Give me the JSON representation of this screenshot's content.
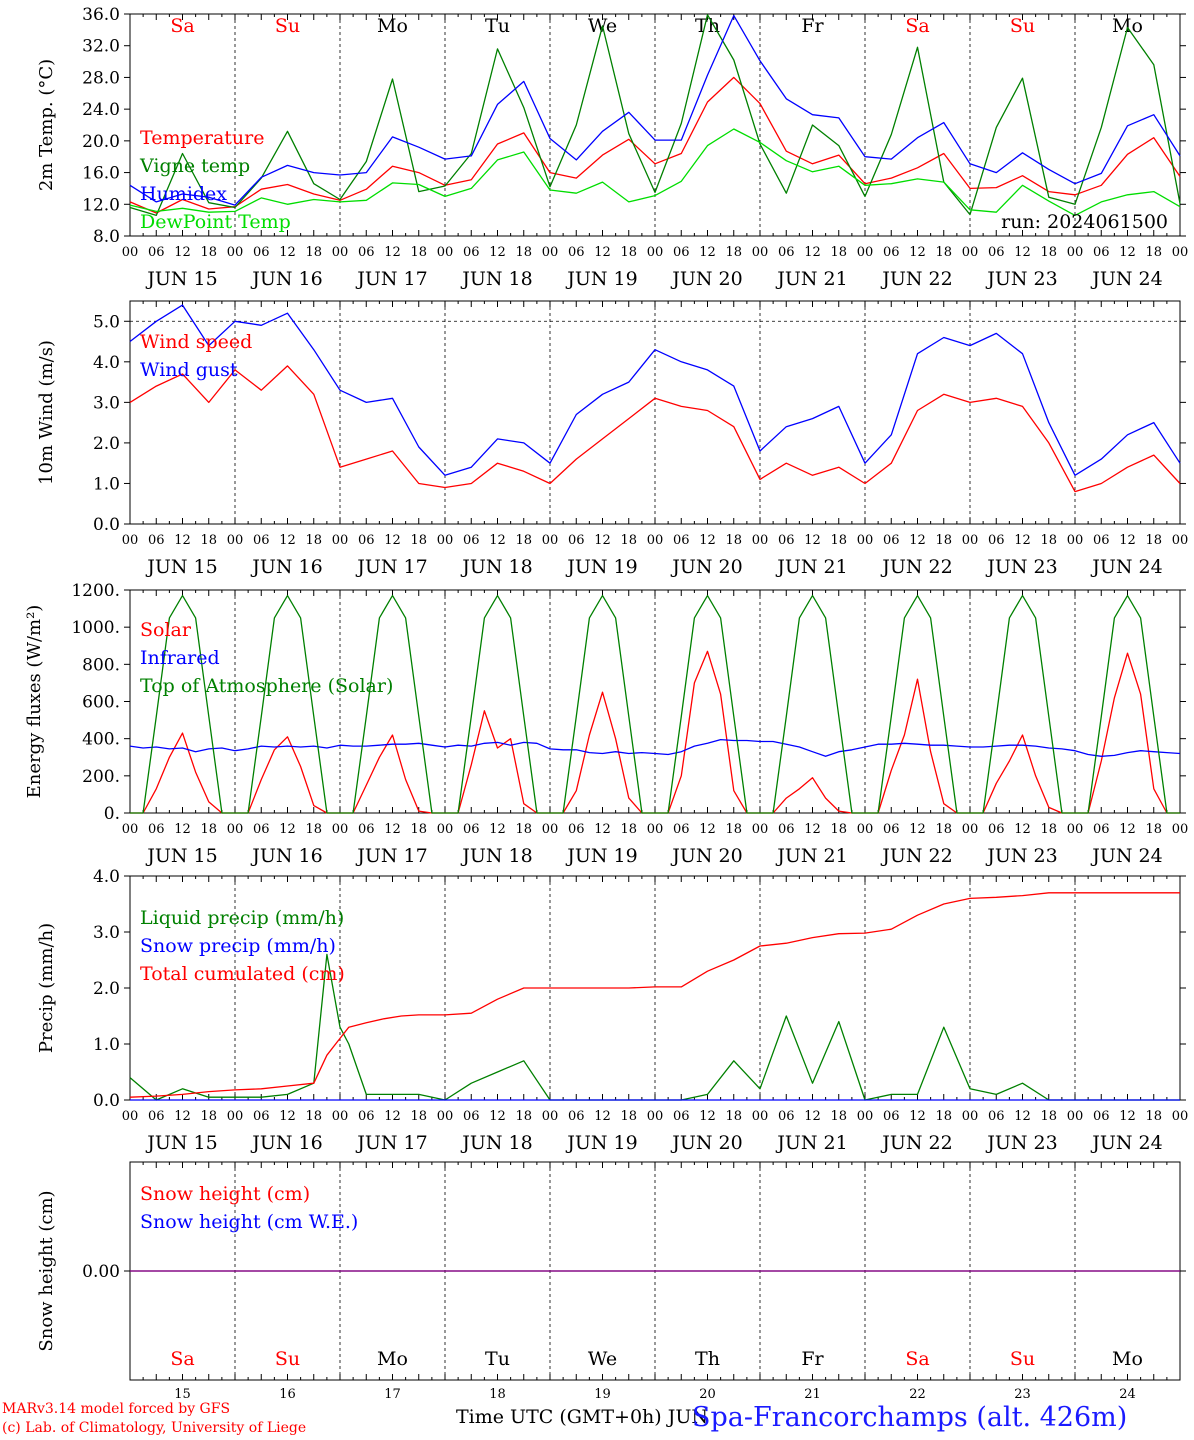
{
  "footer": {
    "credit_line1": "MARv3.14 model forced by GFS",
    "credit_line2": "(c) Lab. of Climatology, University of Liege",
    "xlabel": "Time UTC (GMT+0h) JUN",
    "station": "Spa-Francorchamps (alt. 426m)"
  },
  "day_names": [
    "Sa",
    "Su",
    "Mo",
    "Tu",
    "We",
    "Th",
    "Fr",
    "Sa",
    "Su",
    "Mo"
  ],
  "weekend": [
    true,
    true,
    false,
    false,
    false,
    false,
    false,
    true,
    true,
    false
  ],
  "date_labels": [
    "JUN 15",
    "JUN 16",
    "JUN 17",
    "JUN 18",
    "JUN 19",
    "JUN 20",
    "JUN 21",
    "JUN 22",
    "JUN 23",
    "JUN 24"
  ],
  "day_numbers": [
    "15",
    "16",
    "17",
    "18",
    "19",
    "20",
    "21",
    "22",
    "23",
    "24"
  ],
  "hour_ticks": [
    "00",
    "06",
    "12",
    "18"
  ],
  "last_tick": "00",
  "colors": {
    "red": "#ff0000",
    "green": "#008000",
    "blue": "#0000ff",
    "lightgreen": "#00dd00",
    "purple": "#800080"
  },
  "chart_data": [
    {
      "type": "line",
      "ylabel": "2m Temp. (°C)",
      "ylim": [
        8,
        36
      ],
      "yticks": [
        "8.0",
        "12.0",
        "16.0",
        "20.0",
        "24.0",
        "28.0",
        "32.0",
        "36.0"
      ],
      "annotation": "run: 2024061500",
      "x_hours": [
        0,
        6,
        12,
        18,
        24,
        30,
        36,
        42,
        48,
        54,
        60,
        66,
        72,
        78,
        84,
        90,
        96,
        102,
        108,
        114,
        120,
        126,
        132,
        138,
        144,
        150,
        156,
        162,
        168,
        174,
        180,
        186,
        192,
        198,
        204,
        210,
        216,
        222,
        228,
        234,
        240
      ],
      "series": [
        {
          "name": "Temperature",
          "color": "red",
          "values": [
            12.3,
            10.9,
            12.6,
            11.4,
            11.7,
            13.9,
            14.5,
            13.3,
            12.5,
            13.9,
            16.8,
            16.0,
            14.4,
            15.1,
            19.6,
            21.0,
            16.0,
            15.3,
            18.2,
            20.2,
            17.1,
            18.4,
            24.9,
            28.0,
            24.7,
            18.7,
            17.1,
            18.2,
            14.6,
            15.3,
            16.6,
            18.4,
            14.0,
            14.1,
            15.6,
            13.6,
            13.2,
            14.4,
            18.3,
            20.4,
            15.5
          ]
        },
        {
          "name": "Vigne temp",
          "color": "green",
          "values": [
            11.6,
            10.6,
            18.4,
            12.2,
            11.6,
            15.3,
            21.2,
            14.6,
            12.6,
            17.4,
            27.8,
            13.6,
            14.3,
            18.4,
            31.6,
            24.2,
            14.2,
            22.0,
            34.5,
            20.9,
            13.5,
            22.2,
            35.9,
            30.2,
            19.6,
            13.4,
            22.0,
            19.4,
            13.0,
            20.8,
            31.8,
            14.8,
            10.7,
            21.7,
            27.9,
            12.9,
            12.0,
            21.7,
            34.3,
            29.6,
            12.1
          ]
        },
        {
          "name": "Humidex",
          "color": "blue",
          "values": [
            14.4,
            12.3,
            13.3,
            12.9,
            11.9,
            15.4,
            16.9,
            16.0,
            15.7,
            16.0,
            20.5,
            19.2,
            17.7,
            18.1,
            24.6,
            27.5,
            20.3,
            17.6,
            21.2,
            23.6,
            20.1,
            20.1,
            28.3,
            35.8,
            30.1,
            25.3,
            23.3,
            22.9,
            18.0,
            17.7,
            20.4,
            22.3,
            17.1,
            16.0,
            18.5,
            16.4,
            14.6,
            15.9,
            21.9,
            23.3,
            18.1
          ]
        },
        {
          "name": "DewPoint Temp",
          "color": "lightgreen",
          "values": [
            11.9,
            11.1,
            11.5,
            11.0,
            11.1,
            12.8,
            12.0,
            12.6,
            12.3,
            12.5,
            14.7,
            14.5,
            13.0,
            14.0,
            17.6,
            18.6,
            13.8,
            13.4,
            14.8,
            12.3,
            13.1,
            14.9,
            19.4,
            21.5,
            19.8,
            17.5,
            16.1,
            16.8,
            14.4,
            14.6,
            15.2,
            14.8,
            11.3,
            11.0,
            14.4,
            12.4,
            10.6,
            12.3,
            13.2,
            13.6,
            11.7
          ]
        }
      ]
    },
    {
      "type": "line",
      "ylabel": "10m Wind (m/s)",
      "ylim": [
        0,
        5.5
      ],
      "yticks": [
        "0.0",
        "1.0",
        "2.0",
        "3.0",
        "4.0",
        "5.0"
      ],
      "dashed_y": 5.0,
      "x_hours": [
        0,
        6,
        12,
        18,
        24,
        30,
        36,
        42,
        48,
        54,
        60,
        66,
        72,
        78,
        84,
        90,
        96,
        102,
        108,
        114,
        120,
        126,
        132,
        138,
        144,
        150,
        156,
        162,
        168,
        174,
        180,
        186,
        192,
        198,
        204,
        210,
        216,
        222,
        228,
        234,
        240
      ],
      "series": [
        {
          "name": "Wind speed",
          "color": "red",
          "values": [
            3.0,
            3.4,
            3.7,
            3.0,
            3.8,
            3.3,
            3.9,
            3.2,
            1.4,
            1.6,
            1.8,
            1.0,
            0.9,
            1.0,
            1.5,
            1.3,
            1.0,
            1.6,
            2.1,
            2.6,
            3.1,
            2.9,
            2.8,
            2.4,
            1.1,
            1.5,
            1.2,
            1.4,
            1.0,
            1.5,
            2.8,
            3.2,
            3.0,
            3.1,
            2.9,
            2.0,
            0.8,
            1.0,
            1.4,
            1.7,
            1.0
          ]
        },
        {
          "name": "Wind gust",
          "color": "blue",
          "values": [
            4.5,
            5.0,
            5.4,
            4.4,
            5.0,
            4.9,
            5.2,
            4.3,
            3.3,
            3.0,
            3.1,
            1.9,
            1.2,
            1.4,
            2.1,
            2.0,
            1.5,
            2.7,
            3.2,
            3.5,
            4.3,
            4.0,
            3.8,
            3.4,
            1.8,
            2.4,
            2.6,
            2.9,
            1.5,
            2.2,
            4.2,
            4.6,
            4.4,
            4.7,
            4.2,
            2.5,
            1.2,
            1.6,
            2.2,
            2.5,
            1.5
          ]
        }
      ]
    },
    {
      "type": "line",
      "ylabel": "Energy fluxes (W/m²)",
      "ylim": [
        0,
        1200
      ],
      "yticks": [
        "0.",
        "200.",
        "400.",
        "600.",
        "800.",
        "1000.",
        "1200."
      ],
      "x_hours": [
        0,
        3,
        6,
        9,
        12,
        15,
        18,
        21,
        24,
        27,
        30,
        33,
        36,
        39,
        42,
        45,
        48,
        51,
        54,
        57,
        60,
        63,
        66,
        69,
        72,
        75,
        78,
        81,
        84,
        87,
        90,
        93,
        96,
        99,
        102,
        105,
        108,
        111,
        114,
        117,
        120,
        123,
        126,
        129,
        132,
        135,
        138,
        141,
        144,
        147,
        150,
        153,
        156,
        159,
        162,
        165,
        168,
        171,
        174,
        177,
        180,
        183,
        186,
        189,
        192,
        195,
        198,
        201,
        204,
        207,
        210,
        213,
        216,
        219,
        222,
        225,
        228,
        231,
        234,
        237,
        240
      ],
      "series": [
        {
          "name": "Solar",
          "color": "red",
          "values": [
            0,
            0,
            130,
            300,
            430,
            220,
            60,
            0,
            0,
            0,
            180,
            340,
            410,
            250,
            40,
            0,
            0,
            0,
            150,
            300,
            420,
            180,
            10,
            0,
            0,
            0,
            260,
            550,
            350,
            400,
            50,
            0,
            0,
            0,
            120,
            420,
            650,
            400,
            80,
            0,
            0,
            0,
            200,
            700,
            870,
            640,
            120,
            0,
            0,
            0,
            80,
            130,
            190,
            80,
            10,
            0,
            0,
            0,
            230,
            420,
            720,
            330,
            50,
            0,
            0,
            0,
            160,
            280,
            420,
            200,
            30,
            0,
            0,
            0,
            280,
            620,
            860,
            640,
            130,
            0,
            0
          ]
        },
        {
          "name": "Infrared",
          "color": "blue",
          "values": [
            360,
            350,
            355,
            345,
            350,
            330,
            345,
            350,
            335,
            345,
            360,
            355,
            360,
            355,
            360,
            350,
            365,
            360,
            360,
            365,
            370,
            370,
            375,
            365,
            355,
            365,
            360,
            375,
            380,
            365,
            380,
            375,
            345,
            340,
            340,
            325,
            320,
            330,
            320,
            325,
            320,
            315,
            330,
            360,
            375,
            395,
            390,
            390,
            385,
            385,
            370,
            355,
            330,
            305,
            330,
            340,
            355,
            370,
            370,
            375,
            370,
            365,
            365,
            360,
            355,
            355,
            360,
            365,
            365,
            360,
            350,
            345,
            335,
            315,
            305,
            310,
            325,
            335,
            330,
            325,
            320
          ]
        },
        {
          "name": "Top of Atmosphere (Solar)",
          "color": "green",
          "values": [
            0,
            0,
            520,
            1050,
            1170,
            1050,
            520,
            0,
            0,
            0,
            520,
            1050,
            1170,
            1050,
            520,
            0,
            0,
            0,
            520,
            1050,
            1170,
            1050,
            520,
            0,
            0,
            0,
            520,
            1050,
            1170,
            1050,
            520,
            0,
            0,
            0,
            520,
            1050,
            1170,
            1050,
            520,
            0,
            0,
            0,
            520,
            1050,
            1170,
            1050,
            520,
            0,
            0,
            0,
            520,
            1050,
            1170,
            1050,
            520,
            0,
            0,
            0,
            520,
            1050,
            1170,
            1050,
            520,
            0,
            0,
            0,
            520,
            1050,
            1170,
            1050,
            520,
            0,
            0,
            0,
            520,
            1050,
            1170,
            1050,
            520,
            0,
            0
          ]
        }
      ]
    },
    {
      "type": "line",
      "ylabel": "Precip (mm/h)",
      "ylim": [
        0,
        4
      ],
      "yticks": [
        "0.0",
        "1.0",
        "2.0",
        "3.0",
        "4.0"
      ],
      "x_hours": [
        0,
        6,
        12,
        18,
        24,
        30,
        36,
        42,
        45,
        48,
        50,
        54,
        58,
        62,
        66,
        72,
        78,
        84,
        90,
        96,
        102,
        108,
        114,
        120,
        126,
        132,
        138,
        144,
        150,
        156,
        162,
        168,
        174,
        180,
        186,
        192,
        198,
        204,
        210,
        216,
        222,
        228,
        234,
        240
      ],
      "series": [
        {
          "name": "Liquid precip (mm/h)",
          "color": "green",
          "values": [
            0.4,
            0.0,
            0.2,
            0.05,
            0.05,
            0.05,
            0.1,
            0.3,
            2.6,
            1.3,
            1.0,
            0.1,
            0.1,
            0.1,
            0.1,
            0.0,
            0.3,
            0.5,
            0.7,
            0.0,
            0.0,
            0.0,
            0.0,
            0.0,
            0.0,
            0.1,
            0.7,
            0.2,
            1.5,
            0.3,
            1.4,
            0.0,
            0.1,
            0.1,
            1.3,
            0.2,
            0.1,
            0.3,
            0.0,
            0.0,
            0.0,
            0.0,
            0.0,
            0.0
          ]
        },
        {
          "name": "Snow precip (mm/h)",
          "color": "blue",
          "values": [
            0,
            0,
            0,
            0,
            0,
            0,
            0,
            0,
            0,
            0,
            0,
            0,
            0,
            0,
            0,
            0,
            0,
            0,
            0,
            0,
            0,
            0,
            0,
            0,
            0,
            0,
            0,
            0,
            0,
            0,
            0,
            0,
            0,
            0,
            0,
            0,
            0,
            0,
            0,
            0,
            0,
            0,
            0,
            0
          ]
        },
        {
          "name": "Total cumulated (cm)",
          "color": "red",
          "values": [
            0.05,
            0.07,
            0.1,
            0.15,
            0.18,
            0.2,
            0.25,
            0.3,
            0.8,
            1.1,
            1.3,
            1.38,
            1.45,
            1.5,
            1.52,
            1.52,
            1.55,
            1.8,
            2.0,
            2.0,
            2.0,
            2.0,
            2.0,
            2.02,
            2.02,
            2.3,
            2.5,
            2.75,
            2.8,
            2.9,
            2.97,
            2.98,
            3.05,
            3.3,
            3.5,
            3.6,
            3.62,
            3.65,
            3.7,
            3.7,
            3.7,
            3.7,
            3.7,
            3.7
          ]
        }
      ]
    },
    {
      "type": "line",
      "ylabel": "Snow height (cm)",
      "ylim": [
        -1,
        1
      ],
      "yticks": [
        "0.00"
      ],
      "x_hours": [
        0,
        240
      ],
      "series": [
        {
          "name": "Snow height (cm)",
          "color": "red",
          "values": [
            0,
            0
          ]
        },
        {
          "name": "Snow height (cm W.E.)",
          "color": "blue",
          "values": [
            0,
            0
          ]
        }
      ]
    }
  ]
}
